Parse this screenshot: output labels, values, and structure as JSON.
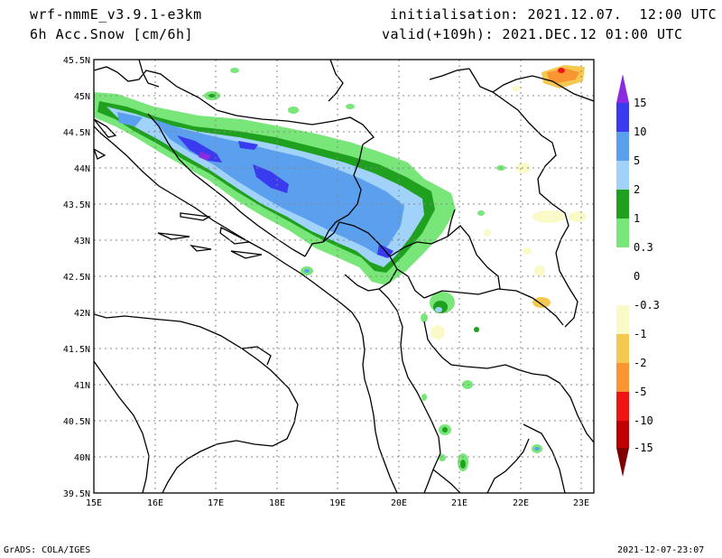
{
  "header": {
    "model": "wrf-nmmE_v3.9.1-e3km",
    "field": "6h Acc.Snow [cm/6h]",
    "init": "initialisation: 2021.12.07.  12:00 UTC",
    "valid": "valid(+109h): 2021.DEC.12 01:00 UTC"
  },
  "axes": {
    "lat_labels": [
      "45.5N",
      "45N",
      "44.5N",
      "44N",
      "43.5N",
      "43N",
      "42.5N",
      "42N",
      "41.5N",
      "41N",
      "40.5N",
      "40N",
      "39.5N"
    ],
    "lon_labels": [
      "15E",
      "16E",
      "17E",
      "18E",
      "19E",
      "20E",
      "21E",
      "22E",
      "23E"
    ],
    "lat_range": [
      39.5,
      45.5
    ],
    "lon_range": [
      15.0,
      23.2
    ]
  },
  "colorbar": {
    "labels": [
      "15",
      "10",
      "5",
      "2",
      "1",
      "0.3",
      "0",
      "-0.3",
      "-1",
      "-2",
      "-5",
      "-10",
      "-15"
    ],
    "colors": {
      "over": "#8a2be2",
      "c10_15": "#3a3aef",
      "c5_10": "#5aa0ef",
      "c2_5": "#a0d2fa",
      "c1_2": "#1fa01f",
      "c03_1": "#78e678",
      "c0_03": "#ffffff",
      "cm03_0": "#ffffff",
      "cm1_m03": "#fafac8",
      "cm2_m1": "#f5c850",
      "cm5_m2": "#fa9632",
      "cm10_m5": "#f01414",
      "cm15_m10": "#c00000",
      "under": "#800000"
    }
  },
  "footer": {
    "left": "GrADS: COLA/IGES",
    "right": "2021-12-07-23:07"
  }
}
